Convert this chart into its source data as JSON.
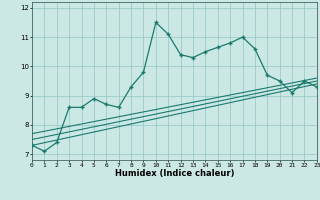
{
  "xlabel": "Humidex (Indice chaleur)",
  "bg_color": "#cce8e4",
  "grid_color": "#99cccc",
  "line_color": "#1a7a6e",
  "xlim": [
    0,
    23
  ],
  "ylim": [
    6.8,
    12.2
  ],
  "yticks": [
    7,
    8,
    9,
    10,
    11,
    12
  ],
  "xticks": [
    0,
    1,
    2,
    3,
    4,
    5,
    6,
    7,
    8,
    9,
    10,
    11,
    12,
    13,
    14,
    15,
    16,
    17,
    18,
    19,
    20,
    21,
    22,
    23
  ],
  "main_x": [
    0,
    1,
    2,
    3,
    4,
    5,
    6,
    7,
    8,
    9,
    10,
    11,
    12,
    13,
    14,
    15,
    16,
    17,
    18,
    19,
    20,
    21,
    22,
    23
  ],
  "main_y": [
    7.3,
    7.1,
    7.4,
    8.6,
    8.6,
    8.9,
    8.7,
    8.6,
    9.3,
    9.8,
    11.5,
    11.1,
    10.4,
    10.3,
    10.5,
    10.65,
    10.8,
    11.0,
    10.6,
    9.7,
    9.5,
    9.1,
    9.5,
    9.3
  ],
  "line1_x": [
    0,
    23
  ],
  "line1_y": [
    7.3,
    9.4
  ],
  "line2_x": [
    0,
    23
  ],
  "line2_y": [
    7.5,
    9.5
  ],
  "line3_x": [
    0,
    23
  ],
  "line3_y": [
    7.7,
    9.6
  ]
}
